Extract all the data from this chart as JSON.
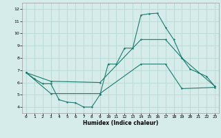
{
  "background_color": "#d6ecea",
  "grid_color": "#b8d8d4",
  "line_color": "#1a7a6e",
  "xlabel": "Humidex (Indice chaleur)",
  "ylim": [
    3.5,
    12.5
  ],
  "xlim": [
    -0.5,
    23.5
  ],
  "yticks": [
    4,
    5,
    6,
    7,
    8,
    9,
    10,
    11,
    12
  ],
  "xticks": [
    0,
    1,
    2,
    3,
    4,
    5,
    6,
    7,
    8,
    9,
    10,
    11,
    12,
    13,
    14,
    15,
    16,
    17,
    18,
    19,
    20,
    21,
    22,
    23
  ],
  "line1_x": [
    0,
    1,
    2,
    3,
    4,
    5,
    6,
    7,
    8,
    9,
    10,
    11,
    12,
    13,
    14,
    15,
    16,
    17,
    18,
    19,
    20,
    21,
    22,
    23
  ],
  "line1_y": [
    6.8,
    6.3,
    5.9,
    5.9,
    4.6,
    4.4,
    4.35,
    4.0,
    4.0,
    5.0,
    7.5,
    7.5,
    8.8,
    8.8,
    11.5,
    11.6,
    11.65,
    10.5,
    9.5,
    8.0,
    7.1,
    6.8,
    6.5,
    5.7
  ],
  "line2_x": [
    0,
    3,
    9,
    14,
    17,
    19,
    23
  ],
  "line2_y": [
    6.8,
    6.1,
    6.0,
    9.5,
    9.5,
    8.0,
    5.7
  ],
  "line3_x": [
    0,
    3,
    9,
    14,
    17,
    19,
    23
  ],
  "line3_y": [
    6.8,
    5.1,
    5.1,
    7.5,
    7.5,
    5.5,
    5.6
  ]
}
